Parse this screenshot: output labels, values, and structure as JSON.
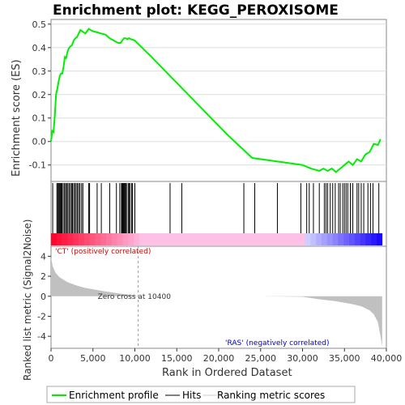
{
  "chart_data": {
    "type": "line",
    "title": "Enrichment plot: KEGG_PEROXISOME",
    "colors": {
      "es_curve": "#00ee00",
      "hit_line": "#000000",
      "metric_fill": "#c0c0c0",
      "positive_label": "#dd0000",
      "negative_label": "#0000cc",
      "grid": "#dddddd"
    },
    "top_panel": {
      "ylabel": "Enrichment score (ES)",
      "ylim": [
        -0.17,
        0.52
      ],
      "yticks": [
        "0.5",
        "0.4",
        "0.3",
        "0.2",
        "0.1",
        "0.0",
        "-0.1"
      ],
      "ytick_values": [
        0.5,
        0.4,
        0.3,
        0.2,
        0.1,
        0.0,
        -0.1
      ],
      "grid": true,
      "series": [
        {
          "name": "Enrichment profile",
          "x": [
            0,
            150,
            300,
            450,
            600,
            750,
            900,
            1050,
            1200,
            1350,
            1500,
            1650,
            1800,
            1950,
            2100,
            2300,
            2500,
            2700,
            2900,
            3100,
            3300,
            3500,
            3700,
            3900,
            4100,
            4300,
            4500,
            4700,
            5000,
            5500,
            6000,
            6500,
            7000,
            7500,
            8000,
            8300,
            8500,
            8700,
            8900,
            9100,
            9300,
            9600,
            10000,
            12000,
            15000,
            18000,
            21000,
            24000,
            27000,
            29000,
            30000,
            31000,
            32000,
            32500,
            33000,
            33500,
            34000,
            34500,
            35000,
            35500,
            36000,
            36500,
            37000,
            37500,
            38000,
            38500,
            39000,
            39300
          ],
          "y": [
            0.0,
            0.045,
            0.04,
            0.11,
            0.2,
            0.225,
            0.255,
            0.28,
            0.29,
            0.29,
            0.32,
            0.36,
            0.355,
            0.38,
            0.395,
            0.405,
            0.41,
            0.43,
            0.44,
            0.445,
            0.46,
            0.475,
            0.47,
            0.465,
            0.46,
            0.47,
            0.48,
            0.475,
            0.47,
            0.465,
            0.46,
            0.455,
            0.44,
            0.43,
            0.42,
            0.42,
            0.43,
            0.44,
            0.44,
            0.435,
            0.44,
            0.435,
            0.43,
            0.36,
            0.25,
            0.14,
            0.03,
            -0.07,
            -0.085,
            -0.095,
            -0.1,
            -0.115,
            -0.125,
            -0.115,
            -0.125,
            -0.115,
            -0.13,
            -0.115,
            -0.1,
            -0.085,
            -0.1,
            -0.075,
            -0.085,
            -0.055,
            -0.045,
            -0.01,
            -0.015,
            0.01
          ]
        }
      ]
    },
    "hits_panel": {
      "name": "Hits",
      "positions": [
        200,
        700,
        800,
        900,
        1000,
        1100,
        1200,
        1300,
        1450,
        1600,
        1750,
        1850,
        2000,
        2150,
        2300,
        2450,
        2550,
        2700,
        2850,
        3000,
        3150,
        3300,
        3450,
        3650,
        3800,
        4500,
        4600,
        5500,
        6000,
        7000,
        7800,
        8200,
        8400,
        8500,
        8600,
        8700,
        8800,
        8900,
        9000,
        9200,
        9300,
        9400,
        9600,
        9700,
        10000,
        14200,
        15600,
        23000,
        24300,
        27000,
        29800,
        30500,
        30800,
        31300,
        32000,
        32600,
        32800,
        33000,
        33300,
        33600,
        33900,
        34300,
        34500,
        34800,
        35000,
        35200,
        35400,
        35700,
        36000,
        36500,
        36700,
        37000,
        37300,
        37800,
        38100,
        38400,
        39100
      ]
    },
    "bottom_panel": {
      "name": "Ranking metric scores",
      "ylabel": "Ranked list metric (Signal2Noise)",
      "ylim": [
        -5.2,
        5.0
      ],
      "yticks": [
        "4",
        "2",
        "0",
        "-2",
        "-4"
      ],
      "ytick_values": [
        4,
        2,
        0,
        -2,
        -4
      ],
      "metric": {
        "x": [
          0,
          200,
          500,
          1000,
          2000,
          3000,
          4000,
          6000,
          8000,
          10000,
          10400,
          15000,
          20000,
          25000,
          30000,
          32000,
          34000,
          36000,
          37000,
          38000,
          38500,
          39000,
          39300,
          39500
        ],
        "y": [
          3.9,
          3.0,
          2.4,
          1.9,
          1.4,
          1.1,
          0.85,
          0.55,
          0.3,
          0.08,
          0.0,
          0.0,
          0.0,
          0.0,
          -0.05,
          -0.3,
          -0.5,
          -0.8,
          -1.0,
          -1.4,
          -1.8,
          -2.6,
          -4.0,
          -5.0
        ]
      },
      "zero_cross_label": "Zero cross at 10400",
      "zero_cross": 10400,
      "pos_label": "'CT' (positively correlated)",
      "neg_label": "'RAS' (negatively correlated)"
    },
    "xaxis": {
      "label": "Rank in Ordered Dataset",
      "xlim": [
        0,
        40000
      ],
      "ticks": [
        "0",
        "5,000",
        "10,000",
        "15,000",
        "20,000",
        "25,000",
        "30,000",
        "35,000",
        "40,000"
      ],
      "tick_values": [
        0,
        5000,
        10000,
        15000,
        20000,
        25000,
        30000,
        35000,
        40000
      ]
    },
    "legend": {
      "placement": "bottom",
      "items": [
        "Enrichment profile",
        "Hits",
        "Ranking metric scores"
      ]
    }
  }
}
